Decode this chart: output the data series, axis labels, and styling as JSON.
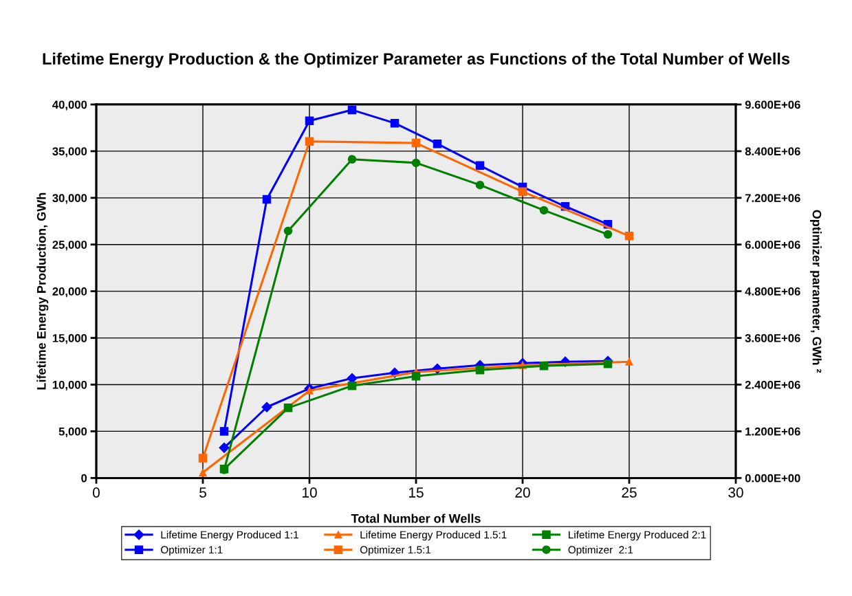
{
  "chart_data": {
    "type": "line",
    "title": "Lifetime Energy Production & the Optimizer Parameter as Functions of the Total Number of Wells",
    "xlabel": "Total Number of Wells",
    "ylabel": "Lifetime Energy Production, GWh",
    "y2label": "Optimizer parameter, GWh ²",
    "xlim": [
      0,
      30
    ],
    "xticks": [
      0,
      5,
      10,
      15,
      20,
      25,
      30
    ],
    "ylim": [
      0,
      40000
    ],
    "yticks": [
      {
        "value": 0,
        "label": "0"
      },
      {
        "value": 5000,
        "label": "5,000"
      },
      {
        "value": 10000,
        "label": "10,000"
      },
      {
        "value": 15000,
        "label": "15,000"
      },
      {
        "value": 20000,
        "label": "20,000"
      },
      {
        "value": 25000,
        "label": "25,000"
      },
      {
        "value": 30000,
        "label": "30,000"
      },
      {
        "value": 35000,
        "label": "35,000"
      },
      {
        "value": 40000,
        "label": "40,000"
      }
    ],
    "y2lim": [
      0,
      9600000
    ],
    "y2ticks": [
      {
        "value": 0,
        "label": "0.000E+00"
      },
      {
        "value": 1200000,
        "label": "1.200E+06"
      },
      {
        "value": 2400000,
        "label": "2.400E+06"
      },
      {
        "value": 3600000,
        "label": "3.600E+06"
      },
      {
        "value": 4800000,
        "label": "4.800E+06"
      },
      {
        "value": 6000000,
        "label": "6.000E+06"
      },
      {
        "value": 7200000,
        "label": "7.200E+06"
      },
      {
        "value": 8400000,
        "label": "8.400E+06"
      },
      {
        "value": 9600000,
        "label": "9.600E+06"
      }
    ],
    "grid": true,
    "legend": "bottom",
    "series": [
      {
        "name": "Lifetime Energy Produced 1:1",
        "color": "#0000ff",
        "marker": "diamond",
        "x": [
          6,
          8,
          10,
          12,
          14,
          16,
          18,
          20,
          22,
          24
        ],
        "values": [
          3240,
          7590,
          9580,
          10680,
          11270,
          11710,
          12080,
          12300,
          12450,
          12520
        ]
      },
      {
        "name": "Lifetime Energy Produced 1.5:1",
        "color": "#ff6600",
        "marker": "triangle",
        "x": [
          5,
          10,
          15,
          20,
          25
        ],
        "values": [
          590,
          9360,
          11340,
          12080,
          12450
        ]
      },
      {
        "name": "Lifetime Energy Produced 2:1",
        "color": "#008000",
        "marker": "square",
        "x": [
          6,
          9,
          12,
          15,
          18,
          21,
          24
        ],
        "values": [
          960,
          7510,
          9870,
          10900,
          11570,
          12010,
          12230
        ]
      },
      {
        "name": "Optimizer 1:1",
        "color": "#0000ff",
        "marker": "square",
        "axis": "y2",
        "x": [
          6,
          8,
          10,
          12,
          14,
          16,
          18,
          20,
          22,
          24
        ],
        "values": [
          1200000,
          7160000,
          9180000,
          9460000,
          9120000,
          8590000,
          8030000,
          7480000,
          6980000,
          6520000
        ]
      },
      {
        "name": "Optimizer 1.5:1",
        "color": "#ff6600",
        "marker": "square",
        "axis": "y2",
        "x": [
          5,
          10,
          15,
          20,
          25
        ],
        "values": [
          510000,
          8650000,
          8610000,
          7360000,
          6220000
        ]
      },
      {
        "name": "Optimizer  2:1",
        "color": "#008000",
        "marker": "circle",
        "axis": "y2",
        "x": [
          6,
          9,
          12,
          15,
          18,
          21,
          24
        ],
        "values": [
          210000,
          6350000,
          8190000,
          8100000,
          7530000,
          6880000,
          6260000
        ]
      }
    ]
  }
}
